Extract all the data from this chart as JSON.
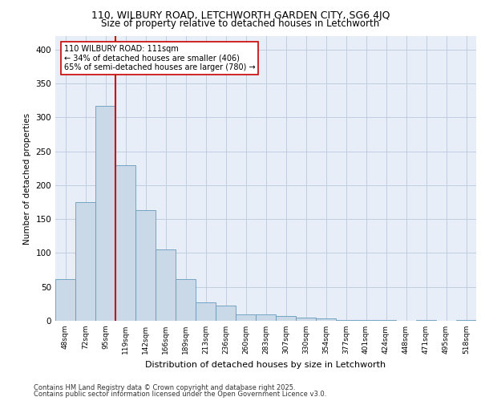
{
  "title1": "110, WILBURY ROAD, LETCHWORTH GARDEN CITY, SG6 4JQ",
  "title2": "Size of property relative to detached houses in Letchworth",
  "xlabel": "Distribution of detached houses by size in Letchworth",
  "ylabel": "Number of detached properties",
  "categories": [
    "48sqm",
    "72sqm",
    "95sqm",
    "119sqm",
    "142sqm",
    "166sqm",
    "189sqm",
    "213sqm",
    "236sqm",
    "260sqm",
    "283sqm",
    "307sqm",
    "330sqm",
    "354sqm",
    "377sqm",
    "401sqm",
    "424sqm",
    "448sqm",
    "471sqm",
    "495sqm",
    "518sqm"
  ],
  "values": [
    62,
    175,
    317,
    230,
    163,
    105,
    62,
    27,
    23,
    9,
    9,
    7,
    5,
    4,
    1,
    1,
    1,
    0,
    1,
    0,
    1
  ],
  "bar_color": "#c9d9e8",
  "bar_edge_color": "#6699bb",
  "vline_x": 2.5,
  "vline_color": "#cc0000",
  "annotation_text": "110 WILBURY ROAD: 111sqm\n← 34% of detached houses are smaller (406)\n65% of semi-detached houses are larger (780) →",
  "annotation_box_color": "#ffffff",
  "annotation_box_edge": "#cc0000",
  "grid_color": "#c0cce0",
  "background_color": "#e8eef8",
  "footer_line1": "Contains HM Land Registry data © Crown copyright and database right 2025.",
  "footer_line2": "Contains public sector information licensed under the Open Government Licence v3.0.",
  "ylim": [
    0,
    420
  ],
  "yticks": [
    0,
    50,
    100,
    150,
    200,
    250,
    300,
    350,
    400
  ]
}
